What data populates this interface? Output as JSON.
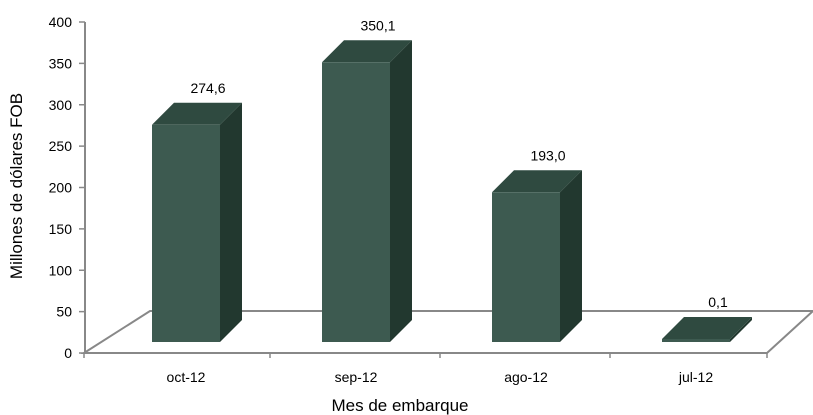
{
  "chart_data": {
    "type": "bar",
    "categories": [
      "oct-12",
      "sep-12",
      "ago-12",
      "jul-12"
    ],
    "values": [
      274.6,
      350.1,
      193.0,
      0.1
    ],
    "data_labels": [
      "274,6",
      "350,1",
      "193,0",
      "0,1"
    ],
    "title": "",
    "xlabel": "Mes de embarque",
    "ylabel": "Millones de dólares FOB",
    "ylim": [
      0,
      400
    ],
    "yticks": [
      0,
      50,
      100,
      150,
      200,
      250,
      300,
      350,
      400
    ],
    "ytick_labels": [
      "0",
      "50",
      "100",
      "150",
      "200",
      "250",
      "300",
      "350",
      "400"
    ],
    "grid": false,
    "legend": "none",
    "style": "3d-column",
    "colors": {
      "bar_front": "#3d5a50",
      "bar_side": "#22382f",
      "bar_top": "#2f4a40",
      "floor_stroke": "#888888",
      "axis": "#888888"
    }
  }
}
